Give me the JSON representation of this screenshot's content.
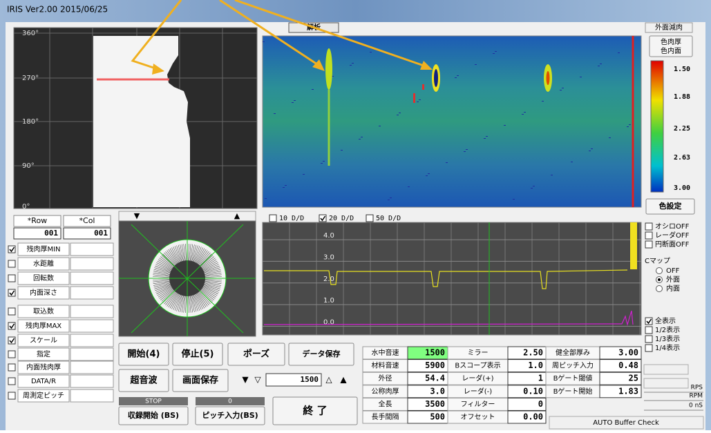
{
  "window": {
    "title": "IRIS Ver2.00  2015/06/25"
  },
  "angle_view": {
    "labels": [
      "360°",
      "270°",
      "180°",
      "90°",
      "0°"
    ]
  },
  "row_col": [
    {
      "label": "*Row",
      "value": "001"
    },
    {
      "label": "*Col",
      "value": "001"
    }
  ],
  "left_params": [
    {
      "label": "残肉厚MIN",
      "checked": true
    },
    {
      "label": "水距離",
      "checked": false
    },
    {
      "label": "回転数",
      "checked": false
    },
    {
      "label": "内面深さ",
      "checked": true
    },
    {
      "label": "取込数",
      "checked": false
    },
    {
      "label": "残肉厚MAX",
      "checked": true
    },
    {
      "label": "スケール",
      "checked": true
    },
    {
      "label": "指定",
      "checked": false
    },
    {
      "label": "内面残肉厚",
      "checked": false
    },
    {
      "label": "DATA/R",
      "checked": false
    },
    {
      "label": "周測定ピッチ",
      "checked": false
    }
  ],
  "tabs": {
    "analysis": "解析",
    "outer": "外面減肉"
  },
  "dd_options": [
    {
      "label": "10 D/D",
      "checked": false
    },
    {
      "label": "20 D/D",
      "checked": true
    },
    {
      "label": "50 D/D",
      "checked": false
    }
  ],
  "trace": {
    "ylim": [
      -0.4,
      4.8
    ],
    "yticks": [
      {
        "value": 4,
        "label": "4.0"
      },
      {
        "value": 3,
        "label": "3.0"
      },
      {
        "value": 2,
        "label": "2.0"
      },
      {
        "value": 1,
        "label": "1.0"
      },
      {
        "value": 0,
        "label": "0.0"
      }
    ]
  },
  "buttons": {
    "start": "開始(4)",
    "stop": "停止(5)",
    "pause": "ポーズ",
    "save_data": "データ保存",
    "ultrasonic": "超音波",
    "save_screen": "画面保存",
    "speed": "1500",
    "rec_status": "STOP",
    "rec_start": "収録開始 (BS)",
    "pitch_status": "0",
    "pitch_input": "ピッチ入力(BS)",
    "exit": "終 了"
  },
  "color_panel": {
    "mode": [
      "色肉厚",
      "色内面"
    ],
    "scale": [
      "1.50",
      "1.88",
      "2.25",
      "2.63",
      "3.00"
    ],
    "setting": "色設定"
  },
  "display_off": [
    {
      "label": "オシロOFF",
      "checked": false
    },
    {
      "label": "レーダOFF",
      "checked": false
    },
    {
      "label": "円断面OFF",
      "checked": false
    }
  ],
  "cmap": {
    "label": "Cマップ",
    "options": [
      "OFF",
      "外面",
      "内面"
    ],
    "selected": 1
  },
  "display_range": [
    {
      "label": "全表示",
      "checked": true
    },
    {
      "label": "1/2表示",
      "checked": false
    },
    {
      "label": "1/3表示",
      "checked": false
    },
    {
      "label": "1/4表示",
      "checked": false
    }
  ],
  "status": [
    "RPS",
    "RPM",
    "0 nS"
  ],
  "auto_buffer": "AUTO Buffer Check",
  "params": [
    [
      {
        "label": "水中音速",
        "value": "1500"
      },
      {
        "label": "ミラー",
        "value": "2.50"
      },
      {
        "label": "健全部厚み",
        "value": "3.00"
      }
    ],
    [
      {
        "label": "材料音速",
        "value": "5900"
      },
      {
        "label": "Bスコープ表示",
        "value": "1.0"
      },
      {
        "label": "周ピッチ入力",
        "value": "0.48"
      }
    ],
    [
      {
        "label": "外径",
        "value": "54.4"
      },
      {
        "label": "レーダ(+)",
        "value": "1"
      },
      {
        "label": "Bゲート閾値",
        "value": "25"
      }
    ],
    [
      {
        "label": "公称肉厚",
        "value": "3.0"
      },
      {
        "label": "レーダ(-)",
        "value": "0.10"
      },
      {
        "label": "Bゲート開始",
        "value": "1.83"
      }
    ],
    [
      {
        "label": "全長",
        "value": "3500"
      },
      {
        "label": "フィルター",
        "value": "0"
      }
    ],
    [
      {
        "label": "長手間隔",
        "value": "500"
      },
      {
        "label": "オフセット",
        "value": "0.00"
      }
    ]
  ]
}
